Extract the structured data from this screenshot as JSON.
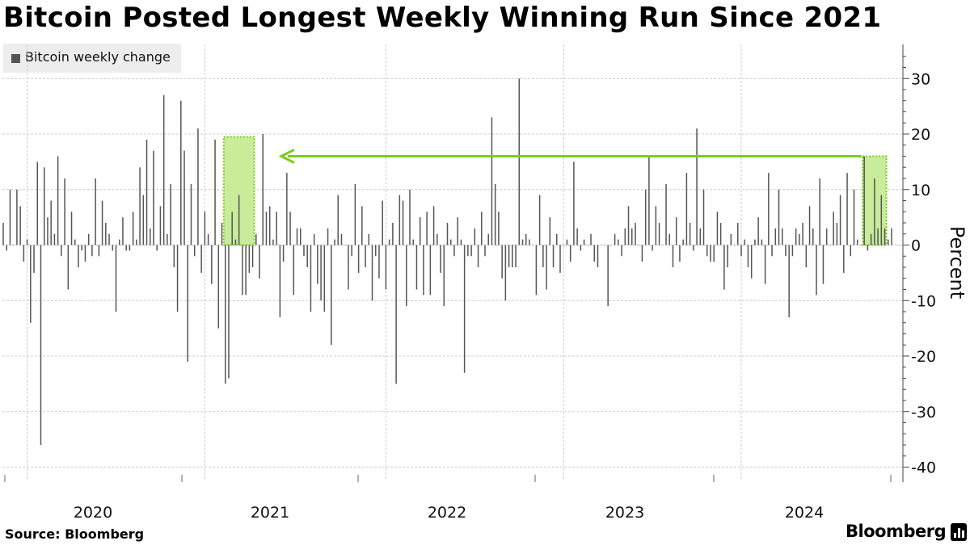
{
  "title": "Bitcoin Posted Longest Weekly Winning Run Since 2021",
  "legend": {
    "label": "Bitcoin weekly change"
  },
  "source": "Source:  Bloomberg",
  "brand": "Bloomberg",
  "colors": {
    "bar": "#555555",
    "highlight_fill": "#c8ec9a",
    "highlight_border": "#7ccc1e",
    "arrow": "#7ccc1e",
    "grid": "#cccccc"
  },
  "chart_data": {
    "type": "bar",
    "ylabel": "Percent",
    "ylim": [
      -40,
      35
    ],
    "yticks": [
      30,
      20,
      10,
      0,
      -10,
      -20,
      -30,
      -40
    ],
    "x_labels": [
      "2020",
      "2021",
      "2022",
      "2023",
      "2024"
    ],
    "grid": true,
    "legend_position": "top-left",
    "series": [
      {
        "name": "Bitcoin weekly change",
        "start": "2019-W40",
        "end": "2024-W41",
        "values": [
          4,
          -1,
          10,
          0,
          10,
          7,
          -3,
          1,
          -14,
          -5,
          15,
          -36,
          14,
          5,
          8,
          2,
          16,
          -2,
          12,
          -8,
          6,
          1,
          -4,
          -1,
          -3,
          2,
          -2,
          12,
          -2,
          8,
          4,
          2,
          -1,
          -12,
          1,
          5,
          -1,
          -1,
          6,
          1,
          14,
          9,
          19,
          3,
          17,
          -1,
          7,
          27,
          2,
          11,
          -4,
          -12,
          26,
          17,
          -21,
          11,
          -2,
          21,
          -5,
          6,
          2,
          -7,
          19,
          -15,
          4,
          -25,
          -24,
          6,
          1,
          9,
          -9,
          -9,
          -5,
          -4,
          2,
          -6,
          20,
          6,
          7,
          1,
          6,
          -13,
          -3,
          13,
          6,
          -9,
          3,
          3,
          -2,
          -4,
          -12,
          2,
          -7,
          -10,
          -12,
          3,
          -18,
          1,
          9,
          2,
          0,
          -8,
          -2,
          11,
          -5,
          7,
          -4,
          2,
          -10,
          -2,
          -6,
          8,
          -8,
          1,
          4,
          -25,
          9,
          8,
          -11,
          10,
          1,
          -8,
          5,
          -9,
          6,
          -9,
          7,
          2,
          -5,
          -11,
          4,
          1,
          -2,
          5,
          1,
          -23,
          -2,
          -2,
          3,
          -4,
          6,
          -2,
          2,
          23,
          11,
          6,
          -6,
          -10,
          -4,
          -4,
          -4,
          30,
          1,
          2,
          1,
          0,
          -9,
          9,
          -4,
          -8,
          5,
          -4,
          2,
          -5,
          0,
          1,
          -3,
          15,
          3,
          -1,
          1,
          0,
          2,
          -3,
          -4,
          0,
          0,
          -11,
          0,
          2,
          1,
          -2,
          3,
          7,
          3,
          4,
          0,
          -3,
          10,
          16,
          -1,
          7,
          4,
          0,
          11,
          2,
          -4,
          5,
          -3,
          1,
          13,
          4,
          -1,
          21,
          3,
          10,
          -2,
          -3,
          -3,
          6,
          4,
          -8,
          -4,
          2,
          0,
          4,
          -2,
          1,
          -4,
          -6,
          1,
          5,
          1,
          -7,
          13,
          -2,
          3,
          10,
          3,
          -2,
          -13,
          -2,
          3,
          2,
          4,
          -4,
          7,
          3,
          -9,
          12,
          -7,
          3,
          0,
          6,
          4,
          9,
          -5,
          13,
          -2,
          10,
          1,
          0,
          16,
          -1,
          2,
          12,
          3,
          9,
          3,
          1,
          3
        ]
      }
    ],
    "highlights": [
      {
        "label": "",
        "from_index": 65,
        "to_index": 73,
        "y0": 0,
        "y1": 19.5
      },
      {
        "label": "",
        "from_index": 252,
        "to_index": 258,
        "y0": 0,
        "y1": 16
      }
    ],
    "arrow": {
      "from_index": 250,
      "to_index": 79,
      "y": 16
    }
  }
}
